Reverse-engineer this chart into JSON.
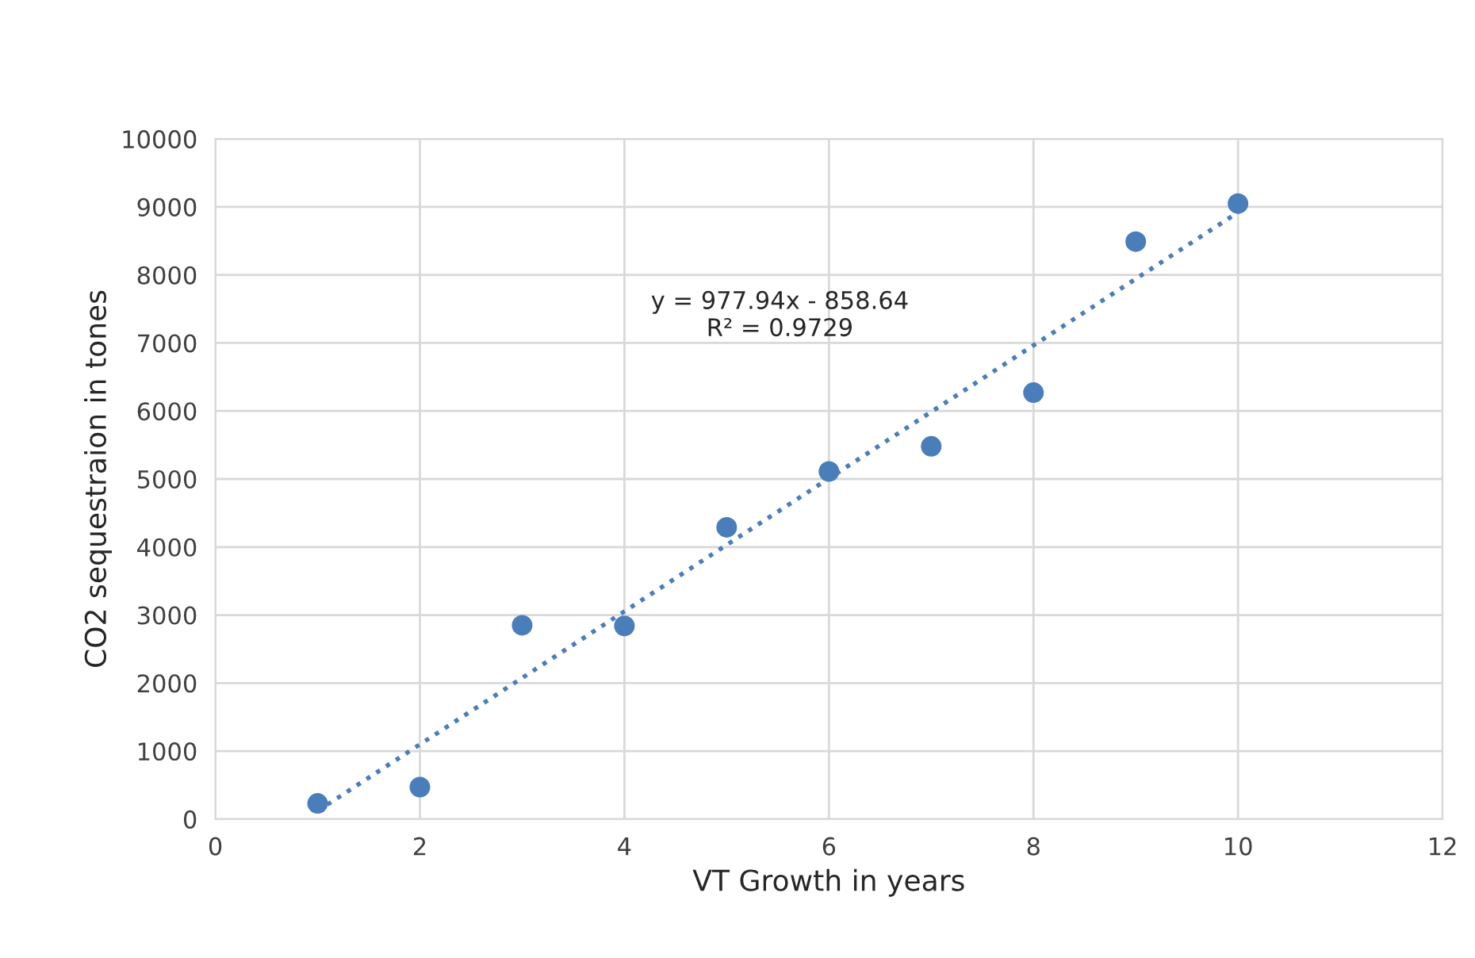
{
  "chart_data": {
    "type": "scatter",
    "xlabel": "VT Growth in years",
    "ylabel": "CO2 sequestraion in tones",
    "series": [
      {
        "color": "#4a7ebb",
        "marker": "circle",
        "x": [
          1,
          2,
          3,
          4,
          5,
          6,
          7,
          8,
          9,
          10
        ],
        "values": [
          230,
          470,
          2850,
          2840,
          4290,
          5110,
          5480,
          6270,
          8490,
          9050
        ]
      },
      {
        "type": "line",
        "color": "#4a7ebb",
        "line_style": "dotted",
        "marker": "none",
        "x": [
          1,
          10
        ],
        "values": [
          120,
          8920
        ]
      }
    ],
    "annotations": [
      "y = 977.94x - 858.64\nR² = 0.9729"
    ],
    "xlim": [
      0,
      12
    ],
    "xticks": [
      0,
      2,
      4,
      6,
      8,
      10,
      12
    ],
    "ylim": [
      0,
      10000
    ],
    "yticks": [
      0,
      1000,
      2000,
      3000,
      4000,
      5000,
      6000,
      7000,
      8000,
      9000,
      10000
    ],
    "grid": true
  }
}
